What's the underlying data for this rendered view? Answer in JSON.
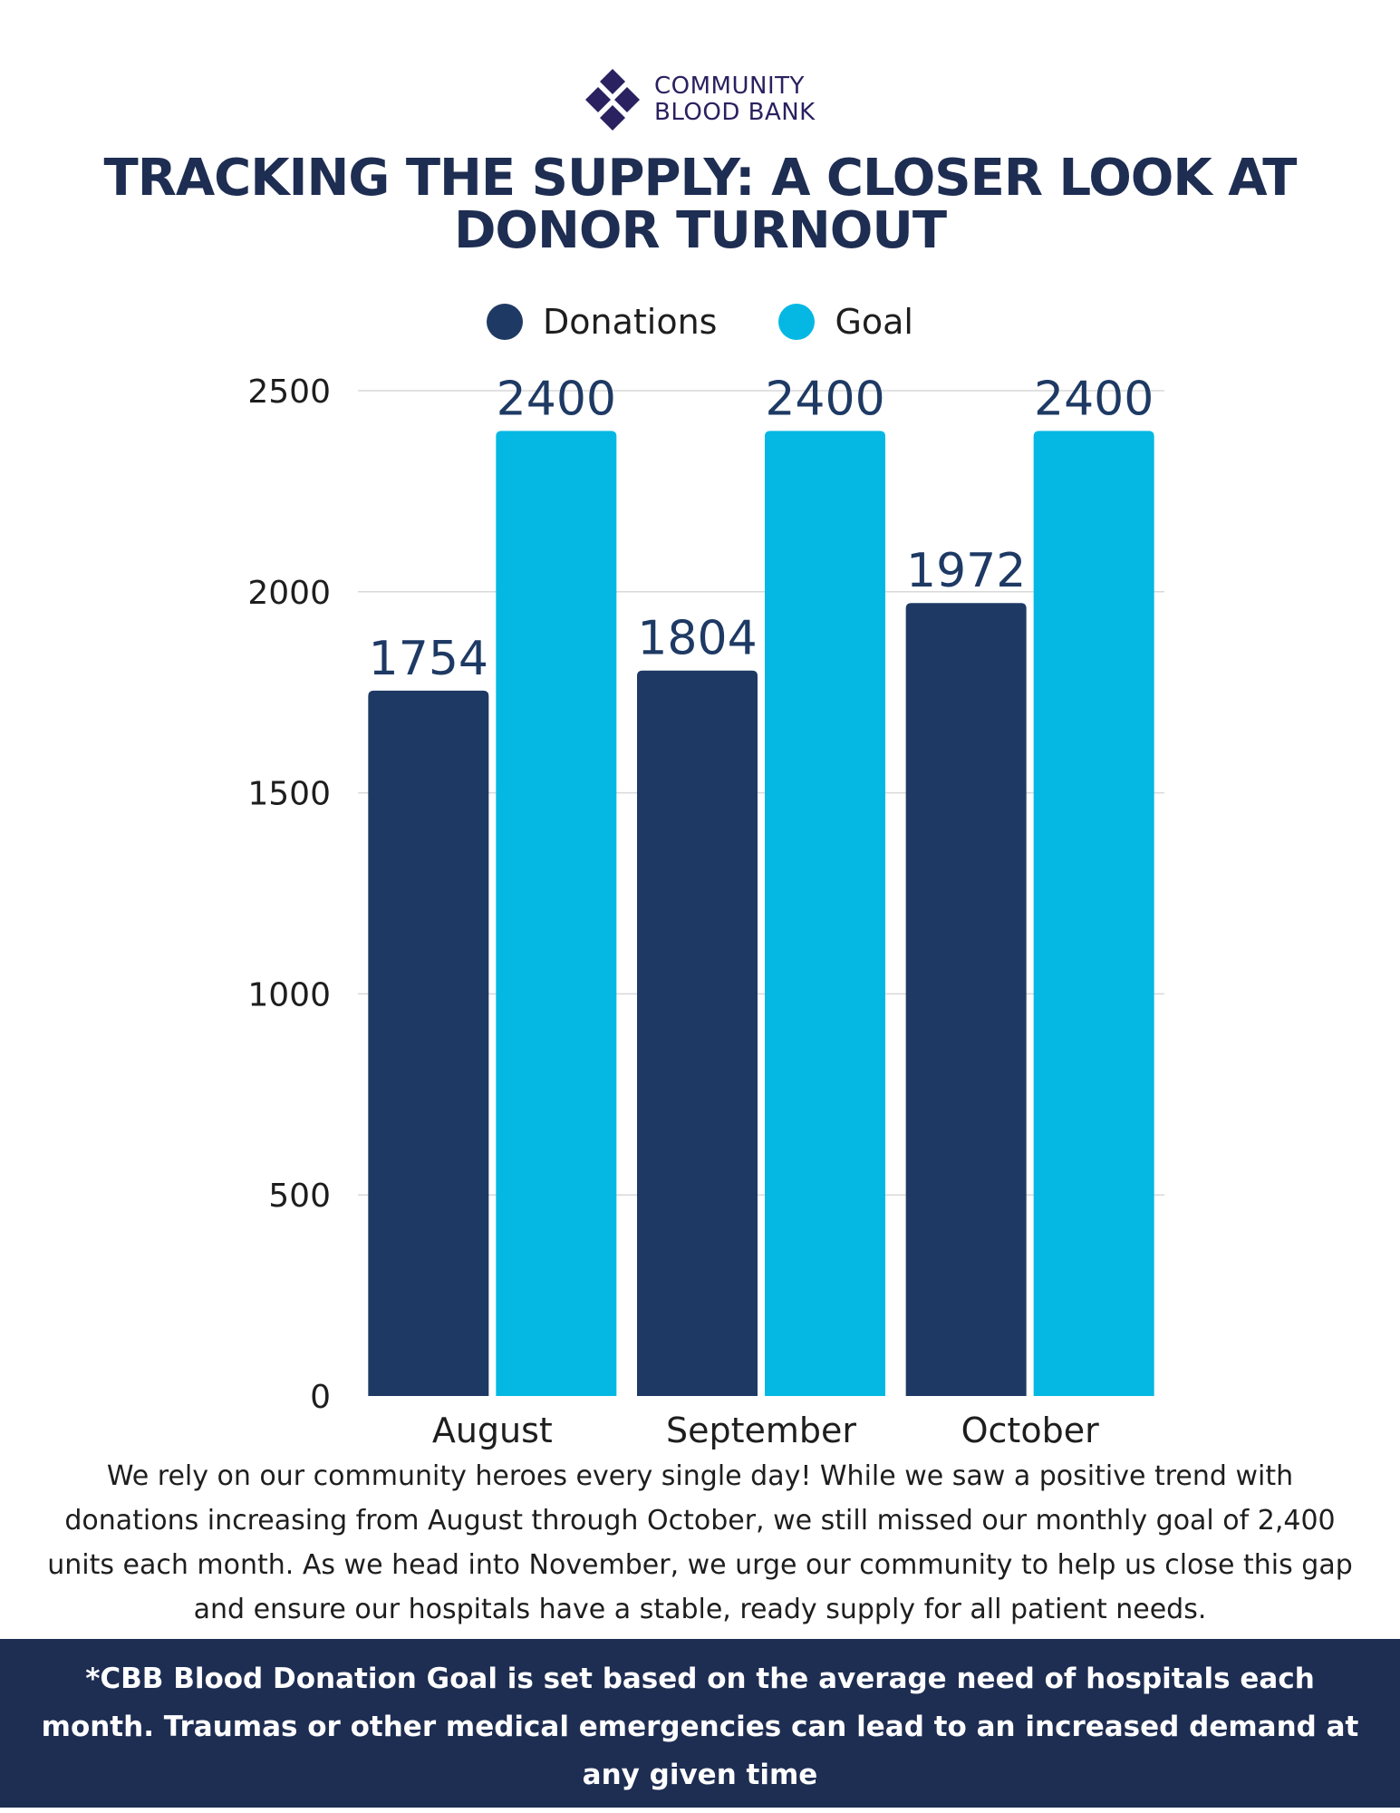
{
  "brand": {
    "line1": "COMMUNITY",
    "line2": "BLOOD BANK",
    "color": "#2a2160"
  },
  "title": "TRACKING THE SUPPLY: A CLOSER LOOK AT DONOR TURNOUT",
  "colors": {
    "donations": "#1e3a64",
    "goal": "#04b8e3",
    "title": "#1e2d52",
    "grid": "#d9d9d9"
  },
  "chart_data": {
    "type": "bar",
    "title": "TRACKING THE SUPPLY: A CLOSER LOOK AT DONOR TURNOUT",
    "categories": [
      "August",
      "September",
      "October"
    ],
    "series": [
      {
        "name": "Donations",
        "values": [
          1754,
          1804,
          1972
        ]
      },
      {
        "name": "Goal",
        "values": [
          2400,
          2400,
          2400
        ]
      }
    ],
    "xlabel": "",
    "ylabel": "",
    "ylim": [
      0,
      2500
    ],
    "yticks": [
      0,
      500,
      1000,
      1500,
      2000,
      2500
    ],
    "grid": true,
    "legend": "top-center"
  },
  "summary": "We rely on our community heroes every single day! While we saw a positive trend with donations increasing from August through October, we still missed our monthly goal of 2,400 units each month. As we head into November, we urge our community to help us close this gap and ensure our hospitals have a stable, ready supply for all patient needs.",
  "footnote": "*CBB Blood Donation Goal is set based on the average need of hospitals each month. Traumas or other medical emergencies can lead to an increased demand at any given time"
}
